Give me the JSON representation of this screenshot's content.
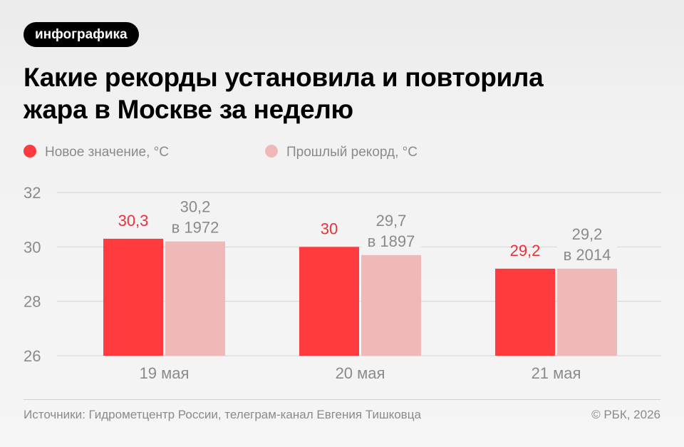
{
  "tag": "инфографика",
  "title_line1": "Какие рекорды установила и повторила",
  "title_line2": "жара в Москве за неделю",
  "legend": [
    {
      "label": "Новое значение, °C",
      "color": "#ff3b3f"
    },
    {
      "label": "Прошлый рекорд, °C",
      "color": "#f0b9b9"
    }
  ],
  "colors": {
    "new": "#ff3b3f",
    "old": "#f0b9b9",
    "new_label": "#e8323a",
    "old_label": "#8a8a8a",
    "axis_text": "#8a8a8a",
    "grid": "#d4d4d4"
  },
  "chart_data": {
    "type": "bar",
    "categories": [
      "19 мая",
      "20 мая",
      "21 мая"
    ],
    "series": [
      {
        "name": "Новое значение, °C",
        "values": [
          30.3,
          30,
          29.2
        ],
        "labels": [
          "30,3",
          "30",
          "29,2"
        ]
      },
      {
        "name": "Прошлый рекорд, °C",
        "values": [
          30.2,
          29.7,
          29.2
        ],
        "labels": [
          "30,2",
          "29,7",
          "29,2"
        ],
        "years": [
          "в 1972",
          "в 1897",
          "в 2014"
        ]
      }
    ],
    "yticks": [
      "32",
      "30",
      "28",
      "26"
    ],
    "ylim": [
      26,
      32
    ],
    "grid": true,
    "legend": "top-left"
  },
  "source": "Источники: Гидрометцентр России, телеграм-канал Евгения Тишковца",
  "copyright": "© РБК, 2026"
}
